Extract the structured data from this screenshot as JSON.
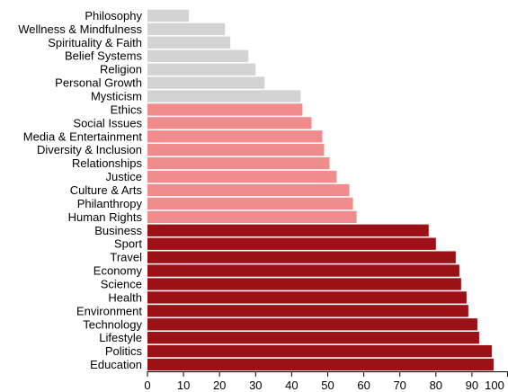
{
  "chart_data": {
    "type": "bar",
    "orientation": "horizontal",
    "categories": [
      "Philosophy",
      "Wellness & Mindfulness",
      "Spirituality & Faith",
      "Belief Systems",
      "Religion",
      "Personal Growth",
      "Mysticism",
      "Ethics",
      "Social Issues",
      "Media & Entertainment",
      "Diversity & Inclusion",
      "Relationships",
      "Justice",
      "Culture & Arts",
      "Philanthropy",
      "Human Rights",
      "Business",
      "Sport",
      "Travel",
      "Economy",
      "Science",
      "Health",
      "Environment",
      "Technology",
      "Lifestyle",
      "Politics",
      "Education"
    ],
    "values": [
      11.5,
      21.5,
      23,
      28,
      30,
      32.5,
      42.5,
      43,
      45.5,
      48.5,
      49,
      50.5,
      52.5,
      56,
      57,
      58,
      78,
      80,
      85.5,
      86.5,
      87,
      88.5,
      89,
      91.5,
      92,
      95.5,
      96
    ],
    "groups": [
      "gray",
      "gray",
      "gray",
      "gray",
      "gray",
      "gray",
      "gray",
      "pink",
      "pink",
      "pink",
      "pink",
      "pink",
      "pink",
      "pink",
      "pink",
      "pink",
      "red",
      "red",
      "red",
      "red",
      "red",
      "red",
      "red",
      "red",
      "red",
      "red",
      "red"
    ],
    "colors": {
      "gray": "#d3d3d3",
      "pink": "#f08c8c",
      "red": "#9b1116"
    },
    "xlim": [
      0,
      100
    ],
    "xticks": [
      0,
      10,
      20,
      30,
      40,
      50,
      60,
      70,
      80,
      90,
      100
    ],
    "title": "",
    "xlabel": "",
    "ylabel": "",
    "grid": false,
    "legend": "none"
  }
}
